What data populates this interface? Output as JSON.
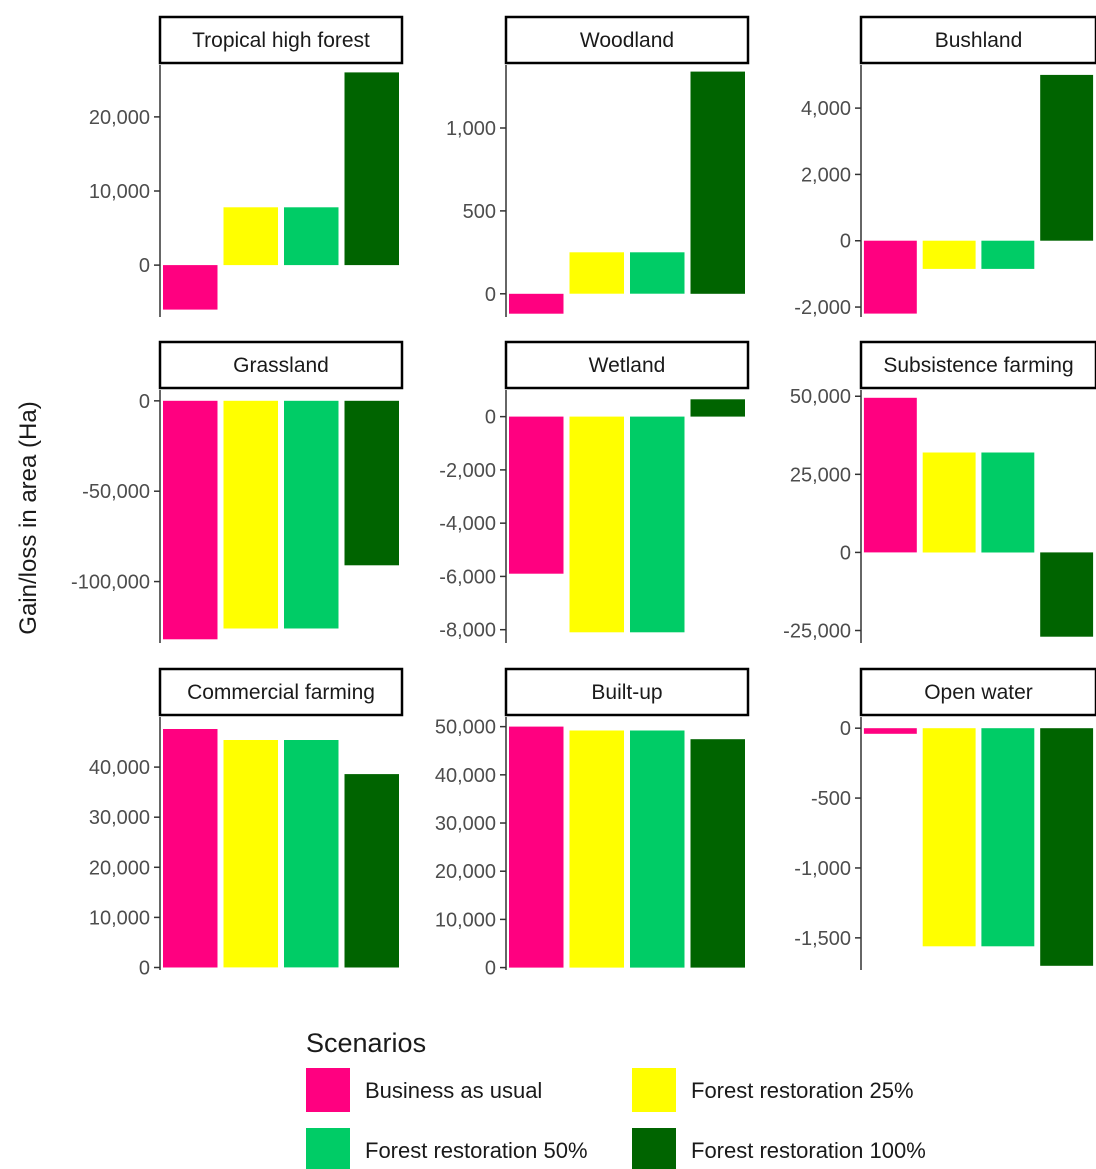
{
  "chart_data": {
    "type": "bar",
    "ylabel": "Gain/loss in area (Ha)",
    "legend": {
      "title": "Scenarios",
      "position": "bottom",
      "entries": [
        {
          "name": "Business as usual",
          "color": "#ff0080"
        },
        {
          "name": "Forest restoration 25%",
          "color": "#ffff00"
        },
        {
          "name": "Forest restoration 50%",
          "color": "#00cc66"
        },
        {
          "name": "Forest restoration 100%",
          "color": "#006400"
        }
      ]
    },
    "panels": [
      {
        "title": "Tropical high forest",
        "values": [
          -6000,
          7800,
          7800,
          26000
        ],
        "ylim": [
          -7000,
          27000
        ],
        "ticks": [
          0,
          10000,
          20000
        ],
        "tick_labels": [
          "0",
          "10,000",
          "20,000"
        ]
      },
      {
        "title": "Woodland",
        "values": [
          -120,
          250,
          250,
          1340
        ],
        "ylim": [
          -140,
          1380
        ],
        "ticks": [
          0,
          500,
          1000
        ],
        "tick_labels": [
          "0",
          "500",
          "1,000"
        ]
      },
      {
        "title": "Bushland",
        "values": [
          -2200,
          -850,
          -850,
          5000
        ],
        "ylim": [
          -2300,
          5300
        ],
        "ticks": [
          -2000,
          0,
          2000,
          4000
        ],
        "tick_labels": [
          "-2,000",
          "0",
          "2,000",
          "4,000"
        ]
      },
      {
        "title": "Grassland",
        "values": [
          -132000,
          -126000,
          -126000,
          -91000
        ],
        "ylim": [
          -134000,
          6000
        ],
        "ticks": [
          -100000,
          -50000,
          0
        ],
        "tick_labels": [
          "-100,000",
          "-50,000",
          "0"
        ]
      },
      {
        "title": "Wetland",
        "values": [
          -5900,
          -8100,
          -8100,
          650
        ],
        "ylim": [
          -8500,
          1000
        ],
        "ticks": [
          -8000,
          -6000,
          -4000,
          -2000,
          0
        ],
        "tick_labels": [
          "-8,000",
          "-6,000",
          "-4,000",
          "-2,000",
          "0"
        ]
      },
      {
        "title": "Subsistence farming",
        "values": [
          49500,
          32000,
          32000,
          -27000
        ],
        "ylim": [
          -29000,
          52000
        ],
        "ticks": [
          -25000,
          0,
          25000,
          50000
        ],
        "tick_labels": [
          "-25,000",
          "0",
          "25,000",
          "50,000"
        ]
      },
      {
        "title": "Commercial farming",
        "values": [
          47600,
          45400,
          45400,
          38600
        ],
        "ylim": [
          -500,
          50000
        ],
        "ticks": [
          0,
          10000,
          20000,
          30000,
          40000
        ],
        "tick_labels": [
          "0",
          "10,000",
          "20,000",
          "30,000",
          "40,000"
        ]
      },
      {
        "title": "Built-up",
        "values": [
          50000,
          49200,
          49200,
          47400
        ],
        "ylim": [
          -500,
          52000
        ],
        "ticks": [
          0,
          10000,
          20000,
          30000,
          40000,
          50000
        ],
        "tick_labels": [
          "0",
          "10,000",
          "20,000",
          "30,000",
          "40,000",
          "50,000"
        ]
      },
      {
        "title": "Open water",
        "values": [
          -40,
          -1560,
          -1560,
          -1700
        ],
        "ylim": [
          -1730,
          80
        ],
        "ticks": [
          -1500,
          -1000,
          -500,
          0
        ],
        "tick_labels": [
          "-1,500",
          "-1,000",
          "-500",
          "0"
        ]
      }
    ]
  }
}
